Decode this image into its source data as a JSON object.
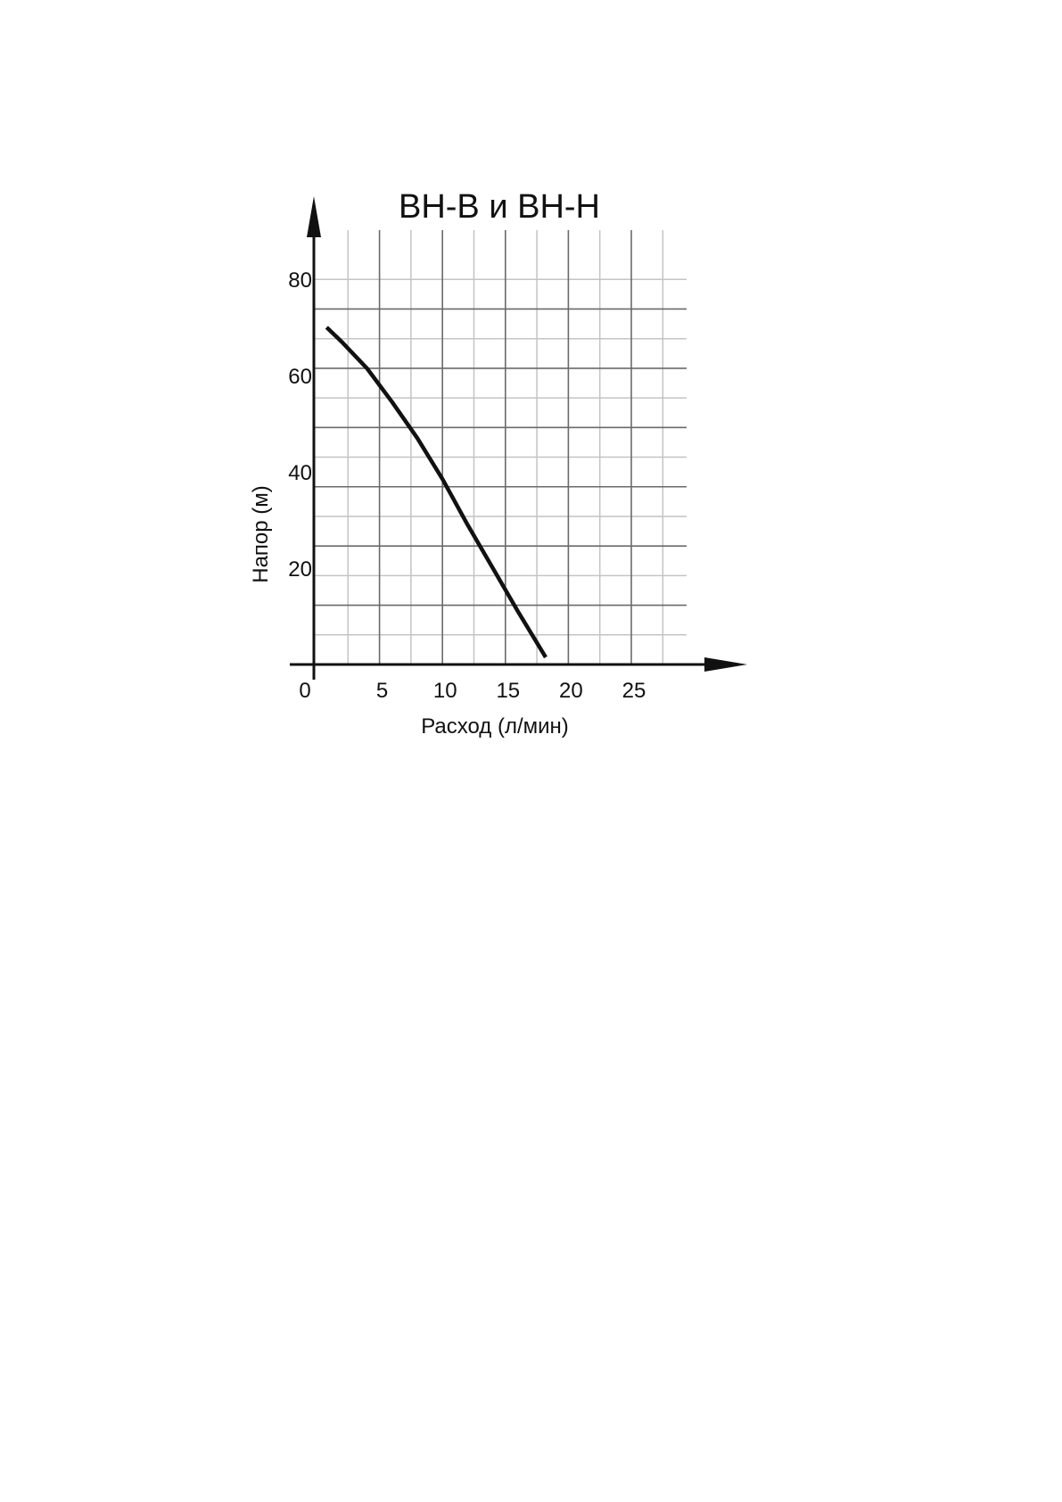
{
  "chart_data": {
    "type": "line",
    "title": "ВН-В и ВН-Н",
    "xlabel": "Расход (л/мин)",
    "ylabel": "Напор (м)",
    "xlim": [
      0,
      30
    ],
    "ylim": [
      0,
      90
    ],
    "x_ticks": [
      "0",
      "5",
      "10",
      "15",
      "20",
      "25"
    ],
    "y_ticks": [
      "20",
      "40",
      "60",
      "80"
    ],
    "grid": true,
    "series": [
      {
        "x": [
          0.8,
          2,
          4,
          6,
          8,
          10,
          12,
          14,
          16,
          18.2
        ],
        "y": [
          70,
          67,
          61.5,
          54.5,
          47,
          38.5,
          29,
          20,
          11,
          1.5
        ]
      }
    ],
    "colors": {
      "curve": "#111111",
      "axis": "#111111",
      "grid_major": "#6a6a6a",
      "grid_minor": "#c4c4c4"
    }
  }
}
